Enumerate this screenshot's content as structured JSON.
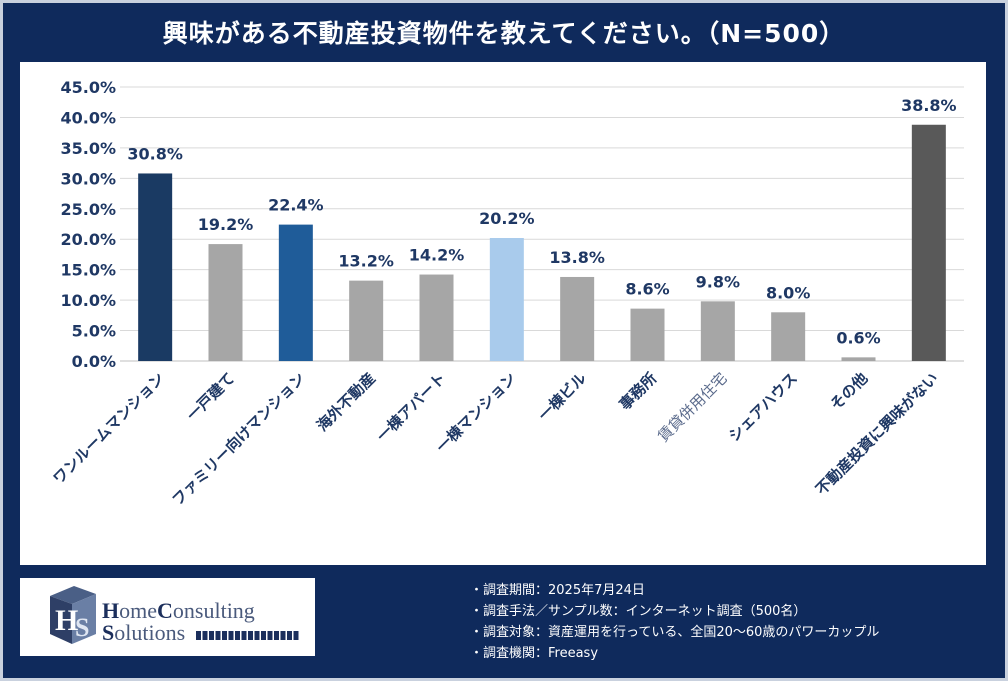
{
  "title": "興味がある不動産投資物件を教えてください。（N=500）",
  "chart_data": {
    "type": "bar",
    "categories": [
      "ワンルームマンション",
      "一戸建て",
      "ファミリー向けマンション",
      "海外不動産",
      "一棟アパート",
      "一棟マンション",
      "一棟ビル",
      "事務所",
      "賃貸併用住宅",
      "シェアハウス",
      "その他",
      "不動産投資に興味がない"
    ],
    "values": [
      30.8,
      19.2,
      22.4,
      13.2,
      14.2,
      20.2,
      13.8,
      8.6,
      9.8,
      8.0,
      0.6,
      38.8
    ],
    "data_labels": [
      "30.8%",
      "19.2%",
      "22.4%",
      "13.2%",
      "14.2%",
      "20.2%",
      "13.8%",
      "8.6%",
      "9.8%",
      "8.0%",
      "0.6%",
      "38.8%"
    ],
    "colors": [
      "#1a3a63",
      "#a6a6a6",
      "#1f5c99",
      "#a6a6a6",
      "#a6a6a6",
      "#a9cbec",
      "#a6a6a6",
      "#a6a6a6",
      "#a6a6a6",
      "#a6a6a6",
      "#a6a6a6",
      "#595959"
    ],
    "yticks": [
      0,
      5,
      10,
      15,
      20,
      25,
      30,
      35,
      40,
      45
    ],
    "ytick_labels": [
      "0.0%",
      "5.0%",
      "10.0%",
      "15.0%",
      "20.0%",
      "25.0%",
      "30.0%",
      "35.0%",
      "40.0%",
      "45.0%"
    ],
    "ylim": [
      0,
      45
    ],
    "grid": true,
    "title": "興味がある不動産投資物件を教えてください。（N=500）",
    "xlabel": "",
    "ylabel": ""
  },
  "logo": {
    "line1_a": "H",
    "line1_b": "ome",
    "line1_c": "C",
    "line1_d": "onsulting",
    "line2_a": "S",
    "line2_b": "olutions"
  },
  "notes": [
    "・調査期間：2025年7月24日",
    "・調査手法／サンプル数：インターネット調査（500名）",
    "・調査対象：資産運用を行っている、全国20～60歳のパワーカップル",
    "・調査機関：Freeasy"
  ]
}
